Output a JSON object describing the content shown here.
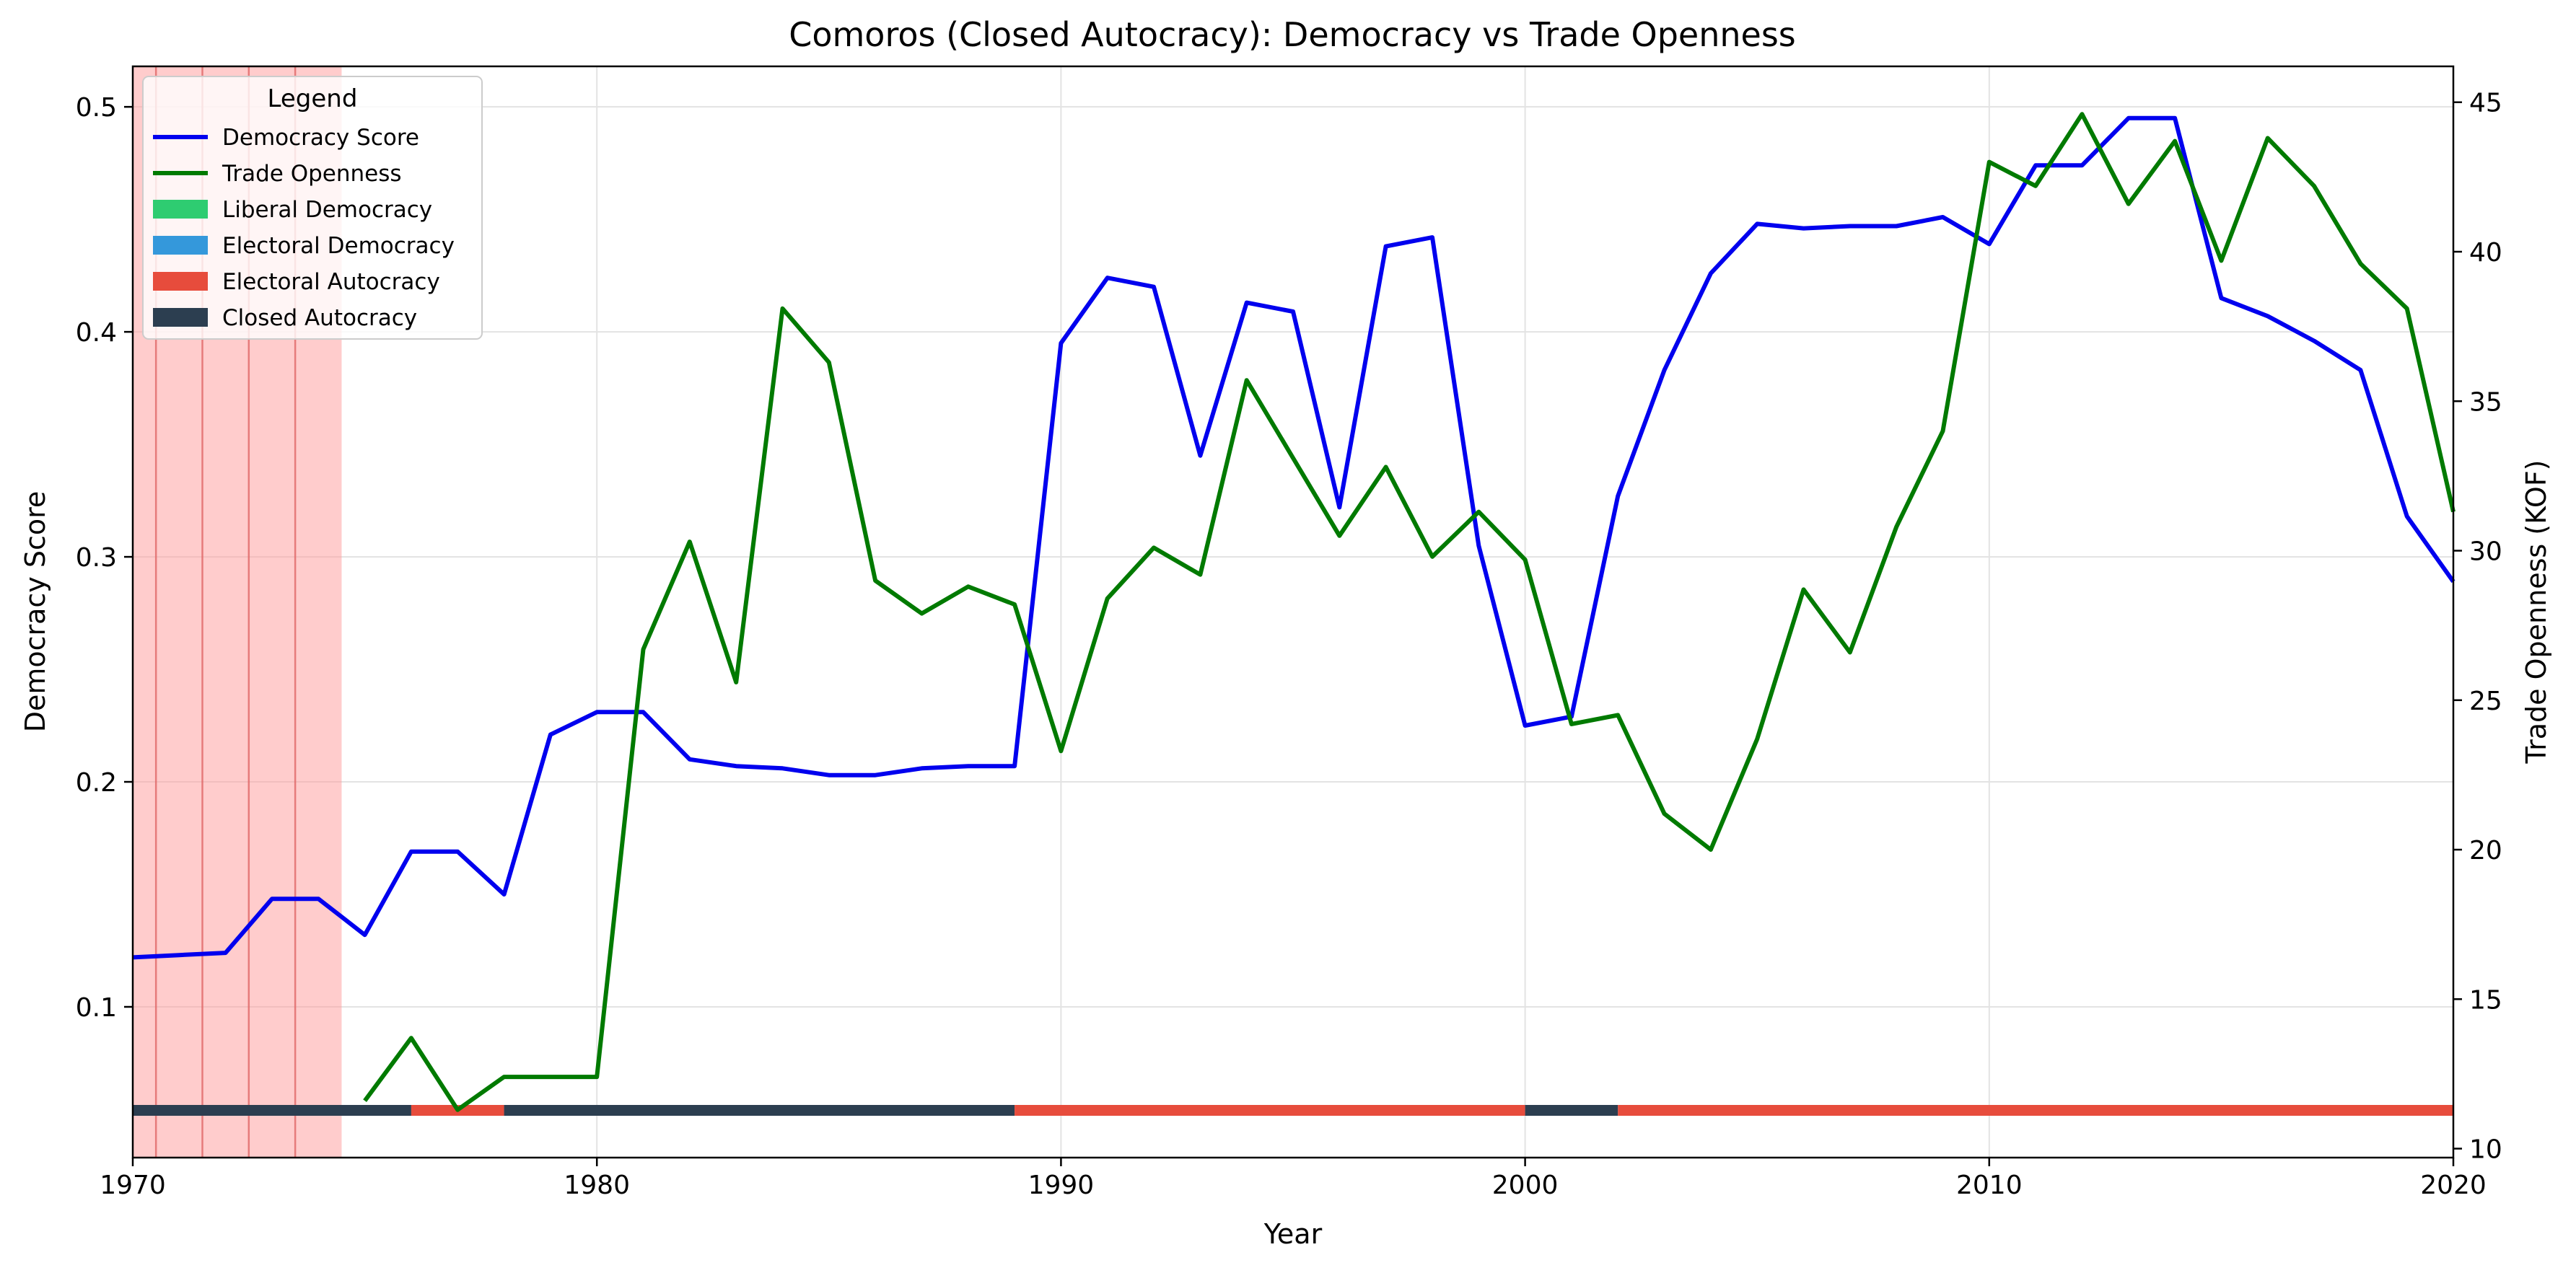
{
  "chart_data": {
    "type": "line",
    "title": "Comoros (Closed Autocracy): Democracy vs Trade Openness",
    "xlabel": "Year",
    "ylabel_left": "Democracy Score",
    "ylabel_right": "Trade Openness (KOF)",
    "xlim": [
      1970,
      2020
    ],
    "ylim_left": [
      0.033,
      0.518
    ],
    "ylim_right": [
      9.7,
      46.2
    ],
    "x_ticks": [
      1970,
      1980,
      1990,
      2000,
      2010,
      2020
    ],
    "y_left_ticks": [
      0.1,
      0.2,
      0.3,
      0.4,
      0.5
    ],
    "y_right_ticks": [
      10,
      15,
      20,
      25,
      30,
      35,
      40,
      45
    ],
    "grid": true,
    "legend_title": "Legend",
    "legend_position": "upper-left",
    "colors": {
      "democracy": "#0000ee",
      "trade": "#007a00",
      "liberal_democracy": "#2ecc71",
      "electoral_democracy": "#3498db",
      "electoral_autocracy": "#e74c3c",
      "closed_autocracy": "#2c3e50",
      "shade": "#ff9999"
    },
    "legend": [
      {
        "label": "Democracy Score",
        "kind": "line",
        "color": "#0000ee"
      },
      {
        "label": "Trade Openness",
        "kind": "line",
        "color": "#007a00"
      },
      {
        "label": "Liberal Democracy",
        "kind": "patch",
        "color": "#2ecc71"
      },
      {
        "label": "Electoral Democracy",
        "kind": "patch",
        "color": "#3498db"
      },
      {
        "label": "Electoral Autocracy",
        "kind": "patch",
        "color": "#e74c3c"
      },
      {
        "label": "Closed Autocracy",
        "kind": "patch",
        "color": "#2c3e50"
      }
    ],
    "series": [
      {
        "name": "Democracy Score",
        "axis": "left",
        "x": [
          1970,
          1971,
          1972,
          1973,
          1974,
          1975,
          1976,
          1977,
          1978,
          1979,
          1980,
          1981,
          1982,
          1983,
          1984,
          1985,
          1986,
          1987,
          1988,
          1989,
          1990,
          1991,
          1992,
          1993,
          1994,
          1995,
          1996,
          1997,
          1998,
          1999,
          2000,
          2001,
          2002,
          2003,
          2004,
          2005,
          2006,
          2007,
          2008,
          2009,
          2010,
          2011,
          2012,
          2013,
          2014,
          2015,
          2016,
          2017,
          2018,
          2019,
          2020
        ],
        "values": [
          0.122,
          0.123,
          0.124,
          0.148,
          0.148,
          0.132,
          0.169,
          0.169,
          0.15,
          0.221,
          0.231,
          0.231,
          0.21,
          0.207,
          0.206,
          0.203,
          0.203,
          0.206,
          0.207,
          0.207,
          0.395,
          0.424,
          0.42,
          0.345,
          0.413,
          0.409,
          0.322,
          0.438,
          0.442,
          0.305,
          0.225,
          0.229,
          0.327,
          0.383,
          0.426,
          0.448,
          0.446,
          0.447,
          0.447,
          0.451,
          0.439,
          0.474,
          0.474,
          0.495,
          0.495,
          0.415,
          0.407,
          0.396,
          0.383,
          0.318,
          0.289
        ]
      },
      {
        "name": "Trade Openness",
        "axis": "right",
        "x": [
          1975,
          1976,
          1977,
          1978,
          1979,
          1980,
          1981,
          1982,
          1983,
          1984,
          1985,
          1986,
          1987,
          1988,
          1989,
          1990,
          1991,
          1992,
          1993,
          1994,
          1995,
          1996,
          1997,
          1998,
          1999,
          2000,
          2001,
          2002,
          2003,
          2004,
          2005,
          2006,
          2007,
          2008,
          2009,
          2010,
          2011,
          2012,
          2013,
          2014,
          2015,
          2016,
          2017,
          2018,
          2019,
          2020
        ],
        "values": [
          11.6,
          13.7,
          11.3,
          12.4,
          12.4,
          12.4,
          26.7,
          30.3,
          25.6,
          38.1,
          36.3,
          29.0,
          27.9,
          28.8,
          28.2,
          23.3,
          28.4,
          30.1,
          29.2,
          35.7,
          33.1,
          30.5,
          32.8,
          29.8,
          31.3,
          29.7,
          24.2,
          24.5,
          21.2,
          20.0,
          23.7,
          28.7,
          26.6,
          30.8,
          34.0,
          43.0,
          42.2,
          44.6,
          41.6,
          43.7,
          39.7,
          43.8,
          42.2,
          39.6,
          38.1,
          31.3
        ]
      }
    ],
    "regime_bar": {
      "y": 0.054,
      "segments": [
        {
          "start": 1970,
          "end": 1976,
          "regime": "Closed Autocracy",
          "color": "#2c3e50"
        },
        {
          "start": 1976,
          "end": 1978,
          "regime": "Electoral Autocracy",
          "color": "#e74c3c"
        },
        {
          "start": 1978,
          "end": 1989,
          "regime": "Closed Autocracy",
          "color": "#2c3e50"
        },
        {
          "start": 1989,
          "end": 2000,
          "regime": "Electoral Autocracy",
          "color": "#e74c3c"
        },
        {
          "start": 2000,
          "end": 2002,
          "regime": "Closed Autocracy",
          "color": "#2c3e50"
        },
        {
          "start": 2002,
          "end": 2020,
          "regime": "Electoral Autocracy",
          "color": "#e74c3c"
        }
      ]
    },
    "shaded_span": {
      "start": 1970,
      "end": 1974.5
    },
    "shade_lines": [
      1970.5,
      1971.5,
      1972.5,
      1973.5
    ]
  }
}
